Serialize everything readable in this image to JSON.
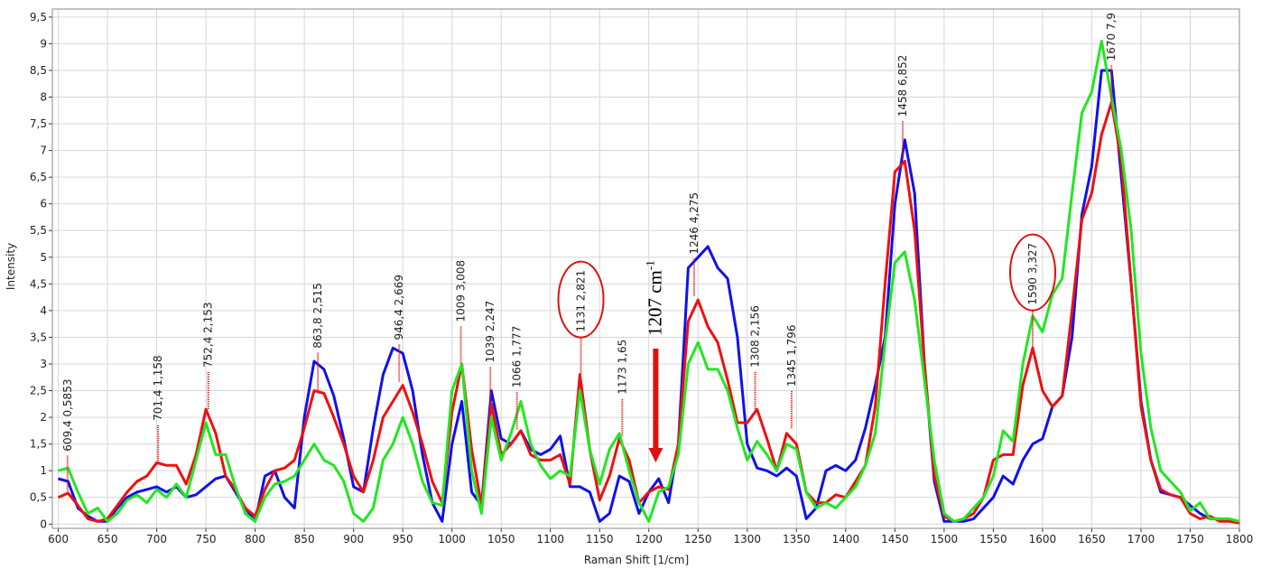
{
  "chart_data": {
    "type": "line",
    "x_label": "Raman Shift [1/cm]",
    "y_label": "Intensity",
    "xlim": [
      594,
      1800
    ],
    "ylim": [
      -0.08,
      9.65
    ],
    "grid": true,
    "xticks": [
      600,
      650,
      700,
      750,
      800,
      850,
      900,
      950,
      1000,
      1050,
      1100,
      1150,
      1200,
      1250,
      1300,
      1350,
      1400,
      1450,
      1500,
      1550,
      1600,
      1650,
      1700,
      1750,
      1800
    ],
    "yticks": [
      0,
      {
        "value": 0.5,
        "label": "0,5"
      },
      1,
      {
        "value": 1.5,
        "label": "1,5"
      },
      2,
      {
        "value": 2.5,
        "label": "2,5"
      },
      3,
      {
        "value": 3.5,
        "label": "3,5"
      },
      4,
      {
        "value": 4.5,
        "label": "4,5"
      },
      5,
      {
        "value": 5.5,
        "label": "5,5"
      },
      6,
      {
        "value": 6.5,
        "label": "6,5"
      },
      7,
      {
        "value": 7.5,
        "label": "7,5"
      },
      8,
      {
        "value": 8.5,
        "label": "8,5"
      },
      9,
      {
        "value": 9.5,
        "label": "9,5"
      }
    ],
    "x": [
      600,
      610,
      620,
      630,
      640,
      650,
      660,
      670,
      680,
      690,
      700,
      710,
      720,
      730,
      740,
      750,
      760,
      770,
      780,
      790,
      800,
      810,
      820,
      830,
      840,
      850,
      860,
      870,
      880,
      890,
      900,
      910,
      920,
      930,
      940,
      950,
      960,
      970,
      980,
      990,
      1000,
      1010,
      1020,
      1030,
      1040,
      1050,
      1060,
      1070,
      1080,
      1090,
      1100,
      1110,
      1120,
      1130,
      1140,
      1150,
      1160,
      1170,
      1180,
      1190,
      1200,
      1210,
      1220,
      1230,
      1240,
      1250,
      1260,
      1270,
      1280,
      1290,
      1300,
      1310,
      1320,
      1330,
      1340,
      1350,
      1360,
      1370,
      1380,
      1390,
      1400,
      1410,
      1420,
      1430,
      1440,
      1450,
      1460,
      1470,
      1480,
      1490,
      1500,
      1510,
      1520,
      1530,
      1540,
      1550,
      1560,
      1570,
      1580,
      1590,
      1600,
      1610,
      1620,
      1630,
      1640,
      1650,
      1660,
      1670,
      1680,
      1690,
      1700,
      1710,
      1720,
      1730,
      1740,
      1750,
      1760,
      1770,
      1780,
      1790,
      1800
    ],
    "series": [
      {
        "color": "#1010ee",
        "values": [
          0.85,
          0.8,
          0.3,
          0.15,
          0.05,
          0.05,
          0.3,
          0.5,
          0.6,
          0.65,
          0.7,
          0.6,
          0.7,
          0.5,
          0.55,
          0.7,
          0.85,
          0.9,
          0.6,
          0.3,
          0.05,
          0.9,
          1.0,
          0.5,
          0.3,
          2.0,
          3.05,
          2.9,
          2.4,
          1.6,
          0.7,
          0.6,
          1.8,
          2.8,
          3.3,
          3.2,
          2.5,
          1.3,
          0.4,
          0.05,
          1.5,
          2.3,
          0.6,
          0.35,
          2.5,
          1.6,
          1.5,
          1.75,
          1.4,
          1.3,
          1.4,
          1.65,
          0.7,
          0.7,
          0.6,
          0.05,
          0.2,
          0.9,
          0.8,
          0.2,
          0.6,
          0.85,
          0.4,
          1.5,
          4.8,
          5.0,
          5.2,
          4.8,
          4.6,
          3.5,
          1.5,
          1.05,
          1.0,
          0.9,
          1.05,
          0.9,
          0.1,
          0.3,
          1.0,
          1.1,
          1.0,
          1.2,
          1.8,
          2.6,
          3.5,
          6.0,
          7.2,
          6.2,
          3.0,
          0.8,
          0.05,
          0.05,
          0.05,
          0.1,
          0.3,
          0.5,
          0.9,
          0.75,
          1.2,
          1.5,
          1.6,
          2.2,
          2.4,
          3.5,
          5.8,
          6.7,
          8.5,
          8.5,
          6.5,
          4.5,
          2.3,
          1.2,
          0.6,
          0.55,
          0.5,
          0.35,
          0.2,
          0.1,
          0.1,
          0.05,
          0.05
        ]
      },
      {
        "color": "#ee1010",
        "values": [
          0.5,
          0.58,
          0.35,
          0.1,
          0.05,
          0.1,
          0.35,
          0.6,
          0.8,
          0.9,
          1.15,
          1.1,
          1.1,
          0.75,
          1.3,
          2.15,
          1.7,
          0.9,
          0.65,
          0.3,
          0.15,
          0.65,
          1.0,
          1.05,
          1.2,
          1.8,
          2.5,
          2.45,
          2.0,
          1.5,
          0.9,
          0.6,
          1.2,
          2.0,
          2.3,
          2.6,
          2.1,
          1.5,
          0.8,
          0.4,
          2.1,
          3.0,
          1.4,
          0.35,
          2.25,
          1.3,
          1.5,
          1.75,
          1.3,
          1.2,
          1.2,
          1.3,
          0.75,
          2.8,
          1.4,
          0.45,
          0.9,
          1.6,
          1.2,
          0.4,
          0.6,
          0.7,
          0.65,
          1.5,
          3.8,
          4.2,
          3.7,
          3.4,
          2.7,
          1.9,
          1.9,
          2.15,
          1.6,
          1.0,
          1.7,
          1.5,
          0.6,
          0.4,
          0.4,
          0.55,
          0.5,
          0.8,
          1.1,
          2.2,
          4.5,
          6.6,
          6.8,
          5.5,
          3.0,
          0.9,
          0.15,
          0.05,
          0.1,
          0.2,
          0.5,
          1.2,
          1.3,
          1.3,
          2.6,
          3.3,
          2.5,
          2.2,
          2.4,
          4.0,
          5.7,
          6.2,
          7.3,
          7.9,
          6.8,
          4.5,
          2.2,
          1.2,
          0.65,
          0.55,
          0.5,
          0.2,
          0.1,
          0.15,
          0.05,
          0.05,
          0.02
        ]
      },
      {
        "color": "#22e622",
        "values": [
          1.0,
          1.05,
          0.6,
          0.2,
          0.3,
          0.05,
          0.2,
          0.45,
          0.55,
          0.4,
          0.65,
          0.5,
          0.75,
          0.5,
          1.2,
          1.9,
          1.3,
          1.3,
          0.7,
          0.2,
          0.05,
          0.5,
          0.75,
          0.8,
          0.9,
          1.2,
          1.5,
          1.2,
          1.1,
          0.8,
          0.2,
          0.05,
          0.3,
          1.2,
          1.5,
          2.0,
          1.5,
          0.8,
          0.4,
          0.35,
          2.5,
          3.0,
          1.0,
          0.2,
          2.0,
          1.2,
          1.7,
          2.3,
          1.5,
          1.1,
          0.85,
          1.0,
          0.9,
          2.5,
          1.4,
          0.75,
          1.4,
          1.7,
          1.0,
          0.4,
          0.05,
          0.6,
          0.7,
          1.3,
          3.0,
          3.4,
          2.9,
          2.9,
          2.5,
          1.8,
          1.2,
          1.55,
          1.3,
          1.0,
          1.5,
          1.4,
          0.6,
          0.3,
          0.4,
          0.3,
          0.5,
          0.7,
          1.1,
          1.7,
          3.4,
          4.9,
          5.1,
          4.2,
          2.7,
          1.2,
          0.2,
          0.05,
          0.1,
          0.3,
          0.5,
          0.9,
          1.75,
          1.55,
          3.0,
          3.9,
          3.6,
          4.3,
          4.6,
          6.2,
          7.7,
          8.1,
          9.05,
          8.0,
          7.0,
          5.5,
          3.2,
          1.8,
          1.0,
          0.8,
          0.6,
          0.25,
          0.4,
          0.1,
          0.1,
          0.1,
          0.05
        ]
      }
    ],
    "annotations": [
      {
        "text": "609,4 0,5853",
        "x": 609.4,
        "y": 0.5853
      },
      {
        "text": "701,4 1,158",
        "x": 701.4,
        "y": 1.158
      },
      {
        "text": "752,4 2,153",
        "x": 752.4,
        "y": 2.153
      },
      {
        "text": "863,8 2,515",
        "x": 863.8,
        "y": 2.515
      },
      {
        "text": "946,4 2,669",
        "x": 946.4,
        "y": 2.669
      },
      {
        "text": "1009 3,008",
        "x": 1009,
        "y": 3.008
      },
      {
        "text": "1039 2,247",
        "x": 1039,
        "y": 2.247
      },
      {
        "text": "1066 1,777",
        "x": 1066,
        "y": 1.777
      },
      {
        "text": "1131 2,821",
        "x": 1131,
        "y": 2.821,
        "circled": true
      },
      {
        "text": "1173 1,65",
        "x": 1173,
        "y": 1.65
      },
      {
        "text": "1246 4,275",
        "x": 1246,
        "y": 4.275
      },
      {
        "text": "1308 2,156",
        "x": 1308,
        "y": 2.156
      },
      {
        "text": "1345 1,796",
        "x": 1345,
        "y": 1.796
      },
      {
        "text": "1458 6,852",
        "x": 1458,
        "y": 6.852
      },
      {
        "text": "1590 3,327",
        "x": 1590,
        "y": 3.327,
        "circled": true
      },
      {
        "text": "1670 7,9",
        "x": 1670,
        "y": 7.9
      }
    ],
    "arrow_note": {
      "text": "1207 cm",
      "sup": "-1",
      "x": 1207
    }
  }
}
